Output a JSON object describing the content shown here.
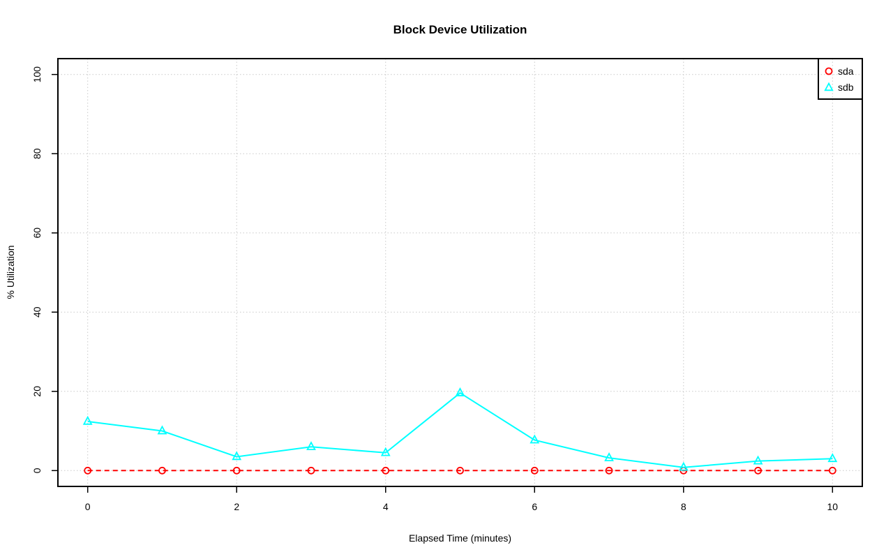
{
  "chart_data": {
    "type": "line",
    "title": "Block Device Utilization",
    "xlabel": "Elapsed Time (minutes)",
    "ylabel": "% Utilization",
    "x": [
      0,
      1,
      2,
      3,
      4,
      5,
      6,
      7,
      8,
      9,
      10
    ],
    "series": [
      {
        "name": "sda",
        "color": "#ff0000",
        "marker": "circle",
        "linestyle": "dashed",
        "values": [
          0,
          0,
          0,
          0,
          0,
          0,
          0,
          0,
          0,
          0,
          0
        ]
      },
      {
        "name": "sdb",
        "color": "#00ffff",
        "marker": "triangle",
        "linestyle": "solid",
        "values": [
          12.4,
          10.0,
          3.5,
          6.0,
          4.5,
          19.6,
          7.7,
          3.2,
          0.8,
          2.4,
          3.0
        ]
      }
    ],
    "xticks": [
      0,
      2,
      4,
      6,
      8,
      10
    ],
    "yticks": [
      0,
      20,
      40,
      60,
      80,
      100
    ],
    "xlim": [
      -0.4,
      10.4
    ],
    "ylim": [
      -4,
      104
    ],
    "grid": true,
    "grid_color": "#c8c8c8",
    "frame_color": "#000000",
    "background_color": "#ffffff",
    "legend": {
      "position": "top-right",
      "entries": [
        "sda",
        "sdb"
      ]
    }
  }
}
